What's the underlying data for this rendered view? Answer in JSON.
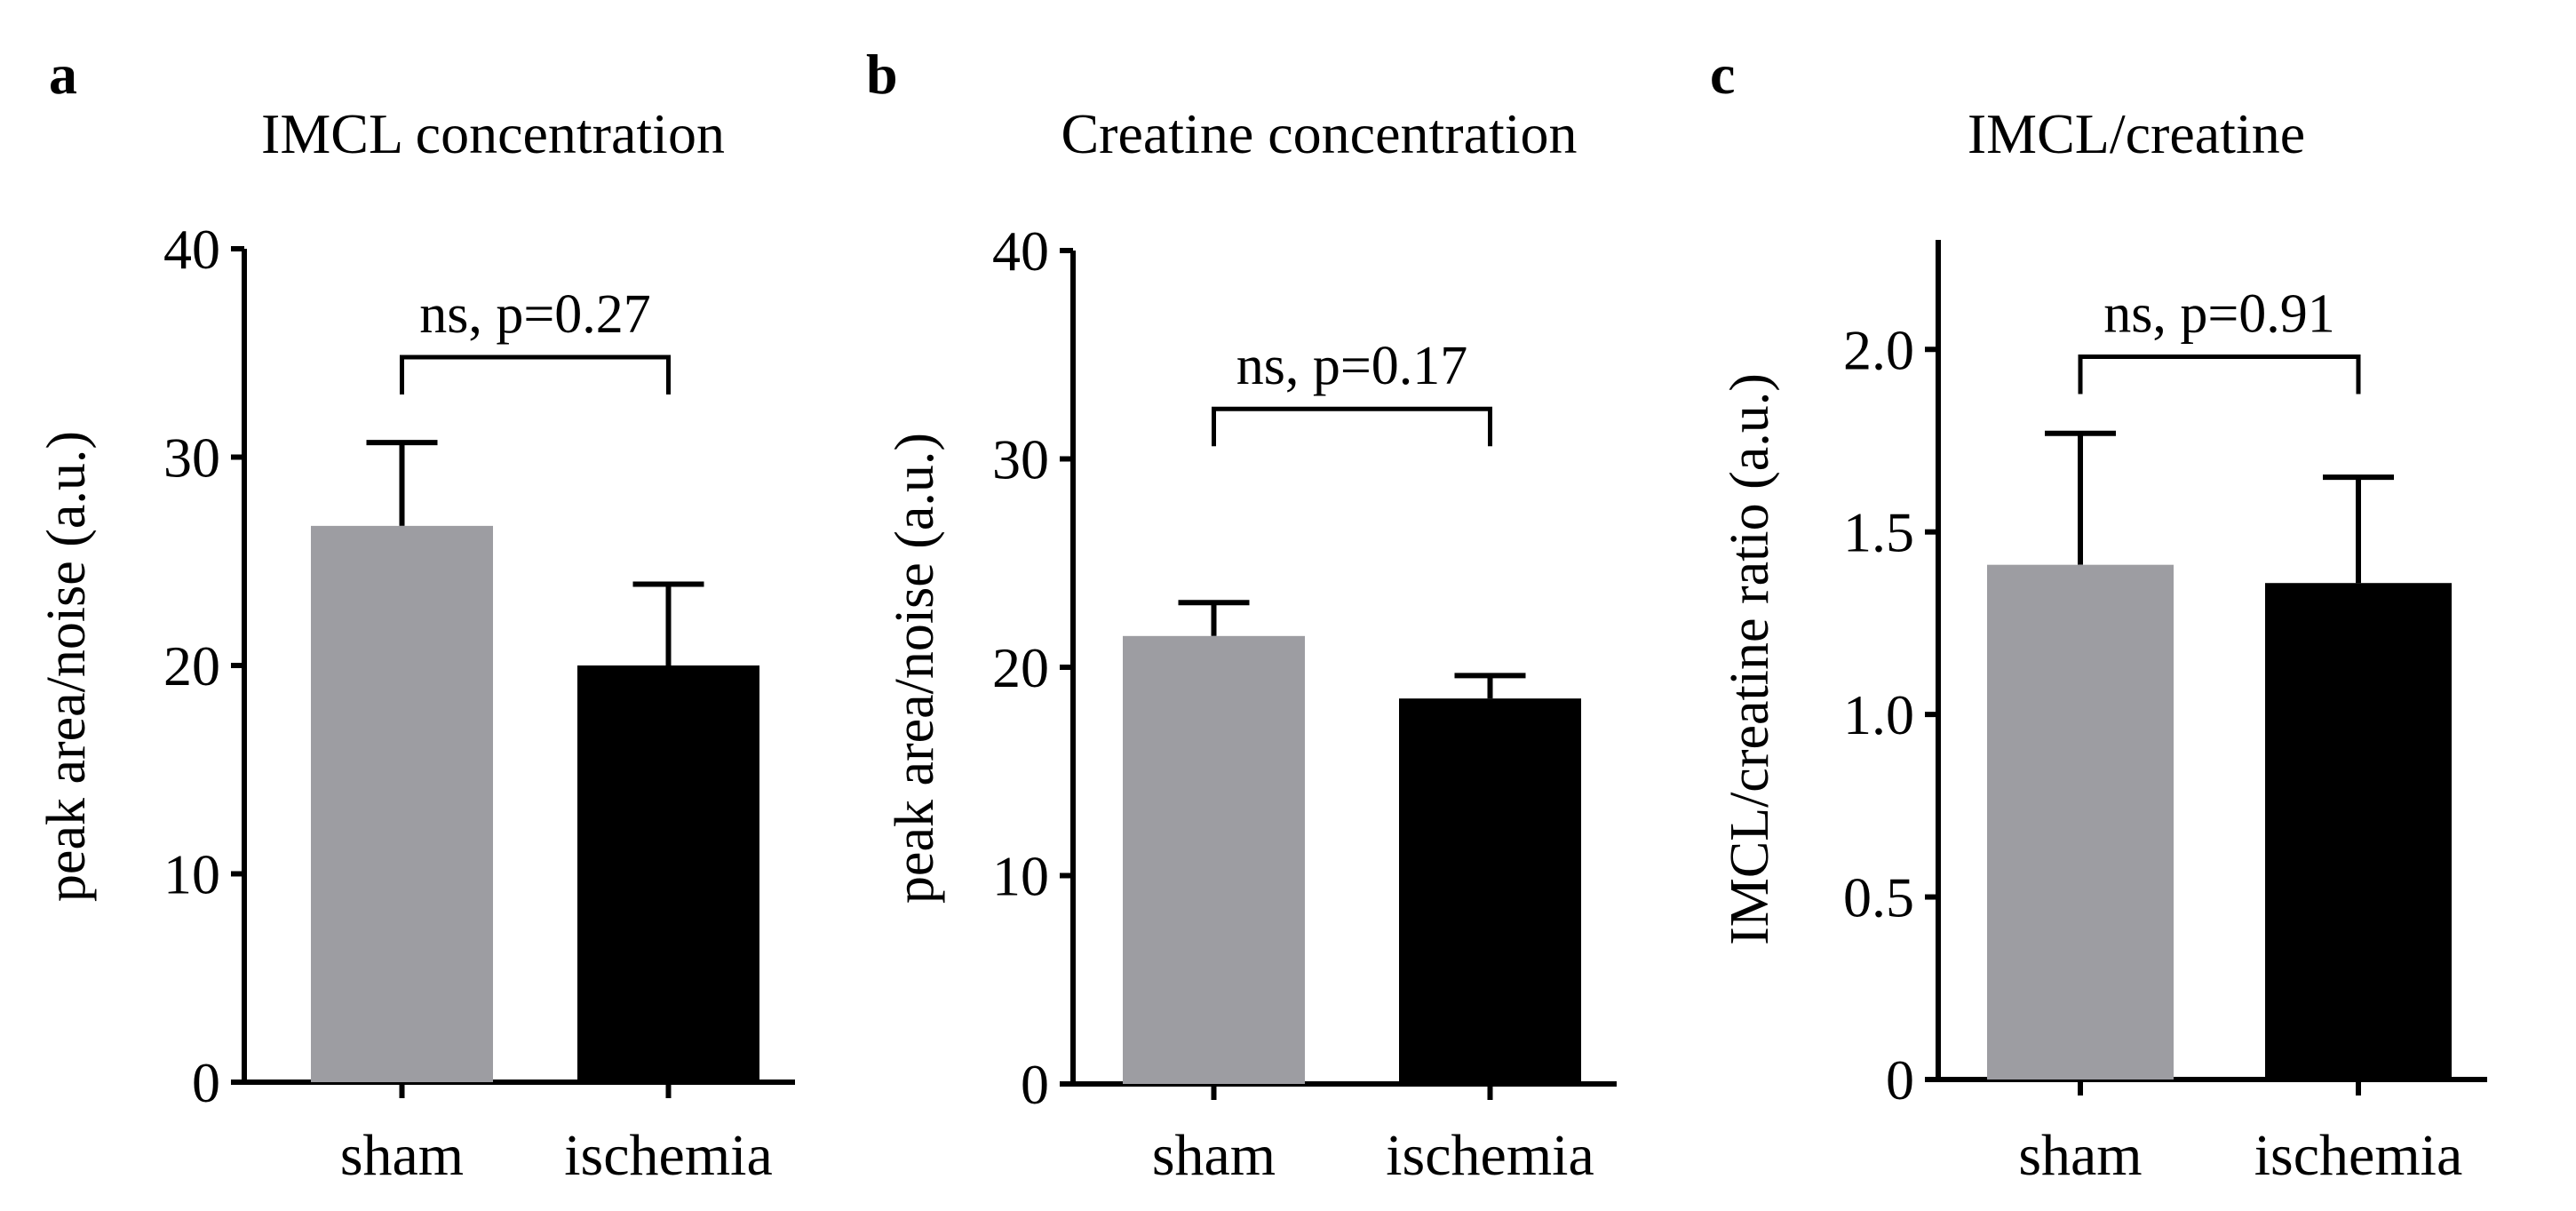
{
  "figure": {
    "panels": [
      "a",
      "b",
      "c"
    ]
  },
  "colors": {
    "sham": "#9d9da2",
    "ischemia": "#000000",
    "axis": "#000000"
  },
  "chart_data": [
    {
      "type": "bar",
      "panel_label": "a",
      "title": "IMCL concentration",
      "xlabel": "",
      "ylabel": "peak area/noise (a.u.)",
      "ylim": [
        0,
        40
      ],
      "yticks": [
        0,
        10,
        20,
        30,
        40
      ],
      "ytick_labels": [
        "0",
        "10",
        "20",
        "30",
        "40"
      ],
      "categories": [
        "sham",
        "ischemia"
      ],
      "values": [
        26.7,
        20.0
      ],
      "errors": [
        4.0,
        3.9
      ],
      "significance": "ns, p=0.27",
      "bracket_level": 34.8
    },
    {
      "type": "bar",
      "panel_label": "b",
      "title": "Creatine concentration",
      "xlabel": "",
      "ylabel": "peak area/noise (a.u.)",
      "ylim": [
        0,
        40
      ],
      "yticks": [
        0,
        10,
        20,
        30,
        40
      ],
      "ytick_labels": [
        "0",
        "10",
        "20",
        "30",
        "40"
      ],
      "categories": [
        "sham",
        "ischemia"
      ],
      "values": [
        21.5,
        18.5
      ],
      "errors": [
        1.6,
        1.1
      ],
      "significance": "ns, p=0.17",
      "bracket_level": 32.4
    },
    {
      "type": "bar",
      "panel_label": "c",
      "title": "IMCL/creatine",
      "xlabel": "",
      "ylabel": "IMCL/creatine ratio (a.u.)",
      "ylim": [
        0,
        2.3
      ],
      "yticks": [
        0,
        0.5,
        1.0,
        1.5,
        2.0
      ],
      "ytick_labels": [
        "0",
        "0.5",
        "1.0",
        "1.5",
        "2.0"
      ],
      "categories": [
        "sham",
        "ischemia"
      ],
      "values": [
        1.41,
        1.36
      ],
      "errors": [
        0.36,
        0.29
      ],
      "significance": "ns, p=0.91",
      "bracket_level": 1.98
    }
  ]
}
